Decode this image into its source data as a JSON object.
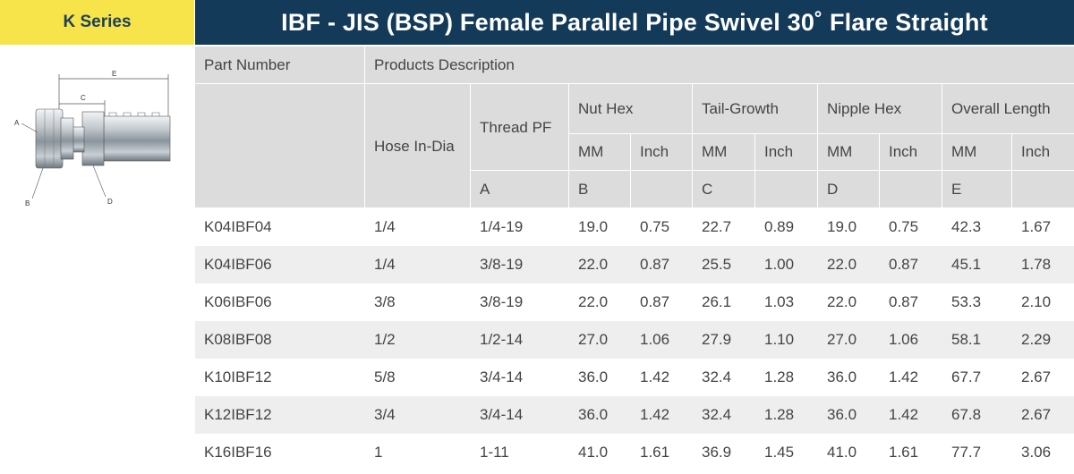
{
  "header": {
    "series_label": "K Series",
    "title": "IBF - JIS (BSP) Female Parallel Pipe Swivel 30˚ Flare Straight"
  },
  "diagram": {
    "labels": {
      "a": "A",
      "b": "B",
      "c": "C",
      "d": "D",
      "e": "E"
    }
  },
  "table": {
    "part_number": "Part Number",
    "products_description": "Products Description",
    "hose_in_dia": "Hose In-Dia",
    "thread_pf": "Thread PF",
    "nut_hex": "Nut Hex",
    "tail_growth": "Tail-Growth",
    "nipple_hex": "Nipple Hex",
    "overall_length": "Overall Length",
    "mm": "MM",
    "inch": "Inch",
    "col_a": "A",
    "col_b": "B",
    "col_c": "C",
    "col_d": "D",
    "col_e": "E",
    "rows": [
      [
        "K04IBF04",
        "1/4",
        "1/4-19",
        "19.0",
        "0.75",
        "22.7",
        "0.89",
        "19.0",
        "0.75",
        "42.3",
        "1.67"
      ],
      [
        "K04IBF06",
        "1/4",
        "3/8-19",
        "22.0",
        "0.87",
        "25.5",
        "1.00",
        "22.0",
        "0.87",
        "45.1",
        "1.78"
      ],
      [
        "K06IBF06",
        "3/8",
        "3/8-19",
        "22.0",
        "0.87",
        "26.1",
        "1.03",
        "22.0",
        "0.87",
        "53.3",
        "2.10"
      ],
      [
        "K08IBF08",
        "1/2",
        "1/2-14",
        "27.0",
        "1.06",
        "27.9",
        "1.10",
        "27.0",
        "1.06",
        "58.1",
        "2.29"
      ],
      [
        "K10IBF12",
        "5/8",
        "3/4-14",
        "36.0",
        "1.42",
        "32.4",
        "1.28",
        "36.0",
        "1.42",
        "67.7",
        "2.67"
      ],
      [
        "K12IBF12",
        "3/4",
        "3/4-14",
        "36.0",
        "1.42",
        "32.4",
        "1.28",
        "36.0",
        "1.42",
        "67.8",
        "2.67"
      ],
      [
        "K16IBF16",
        "1",
        "1-11",
        "41.0",
        "1.61",
        "36.9",
        "1.45",
        "41.0",
        "1.61",
        "77.7",
        "3.06"
      ]
    ]
  }
}
